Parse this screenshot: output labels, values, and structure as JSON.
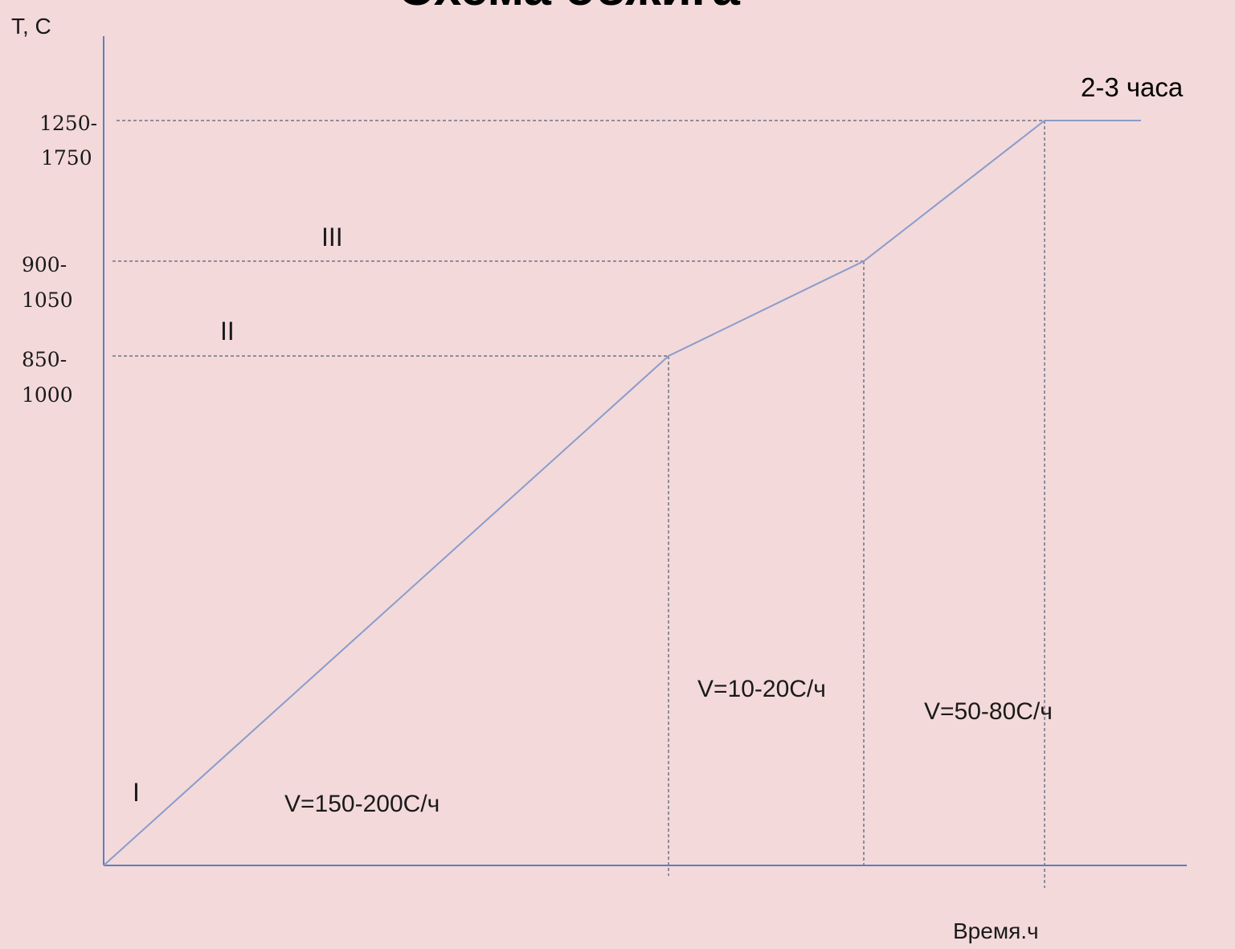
{
  "title_partial": "Схема обжига",
  "chart_data": {
    "type": "line",
    "ylabel": "Т, С",
    "xlabel": "Время.ч",
    "y_tick_labels": [
      {
        "line1": "1250-",
        "line2": "1750"
      },
      {
        "line1": "900-",
        "line2": "1050"
      },
      {
        "line1": "850-",
        "line2": "1000"
      }
    ],
    "stages": [
      {
        "roman": "I",
        "rate": "V=150-200С/ч"
      },
      {
        "roman": "II",
        "rate": "V=10-20С/ч"
      },
      {
        "roman": "III",
        "rate": "V=50-80С/ч"
      }
    ],
    "hold_label": "2-3 часа",
    "colors": {
      "background": "#f3d9da",
      "axis": "#5b7fbf",
      "curve": "#8a9ccc",
      "guides": "#6e7488"
    }
  }
}
